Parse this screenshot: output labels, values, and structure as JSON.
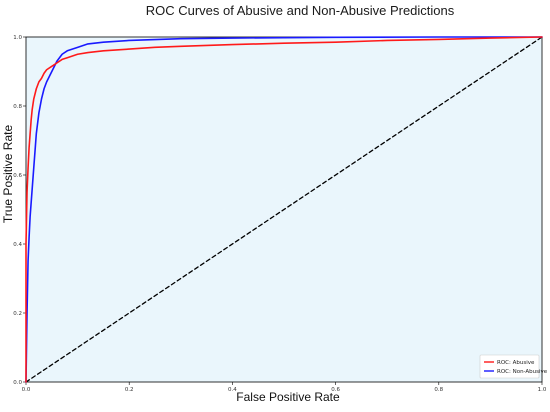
{
  "chart_data": {
    "type": "line",
    "title": "ROC Curves of Abusive and Non-Abusive Predictions",
    "xlabel": "False Positive Rate",
    "ylabel": "True Positive Rate",
    "xlim": [
      0.0,
      1.0
    ],
    "ylim": [
      0.0,
      1.0
    ],
    "x_ticks": [
      "0.0",
      "0.2",
      "0.4",
      "0.6",
      "0.8",
      "1.0"
    ],
    "y_ticks": [
      "0.0",
      "0.2",
      "0.4",
      "0.6",
      "0.8",
      "1.0"
    ],
    "grid": false,
    "legend_position": "bottom-right",
    "plot_background": "#eaf6fc",
    "series": [
      {
        "name": "ROC: Abusive",
        "color": "#ff1a1a",
        "x": [
          0.0,
          0.0,
          0.002,
          0.004,
          0.006,
          0.008,
          0.01,
          0.012,
          0.015,
          0.02,
          0.025,
          0.03,
          0.035,
          0.04,
          0.05,
          0.06,
          0.07,
          0.08,
          0.1,
          0.12,
          0.15,
          0.2,
          0.25,
          0.3,
          0.4,
          0.5,
          0.6,
          0.7,
          0.8,
          0.9,
          1.0
        ],
        "y": [
          0.0,
          0.4,
          0.55,
          0.62,
          0.68,
          0.72,
          0.76,
          0.79,
          0.82,
          0.85,
          0.87,
          0.88,
          0.895,
          0.905,
          0.915,
          0.925,
          0.935,
          0.94,
          0.95,
          0.955,
          0.96,
          0.965,
          0.97,
          0.973,
          0.978,
          0.982,
          0.985,
          0.99,
          0.993,
          0.997,
          1.0
        ]
      },
      {
        "name": "ROC: Non-Abusive",
        "color": "#1a1aff",
        "x": [
          0.0,
          0.002,
          0.004,
          0.006,
          0.008,
          0.01,
          0.012,
          0.015,
          0.018,
          0.02,
          0.025,
          0.03,
          0.035,
          0.04,
          0.05,
          0.06,
          0.07,
          0.08,
          0.1,
          0.12,
          0.15,
          0.2,
          0.3,
          0.4,
          0.5,
          0.6,
          0.8,
          1.0
        ],
        "y": [
          0.0,
          0.2,
          0.35,
          0.42,
          0.48,
          0.52,
          0.56,
          0.62,
          0.68,
          0.72,
          0.78,
          0.82,
          0.85,
          0.87,
          0.9,
          0.93,
          0.95,
          0.96,
          0.97,
          0.98,
          0.985,
          0.99,
          0.995,
          0.997,
          0.998,
          0.999,
          1.0,
          1.0
        ]
      },
      {
        "name": "",
        "color": "#000000",
        "dashed": true,
        "x": [
          0.0,
          1.0
        ],
        "y": [
          0.0,
          1.0
        ]
      }
    ]
  }
}
